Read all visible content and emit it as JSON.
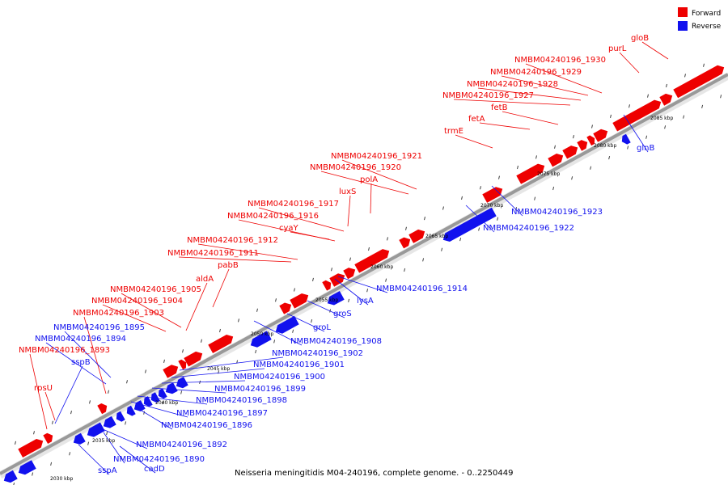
{
  "caption": "Neisseria meningitidis M04-240196, complete genome. - 0..2250449",
  "legend": [
    {
      "label": "Forward",
      "color": "#ee0000"
    },
    {
      "label": "Reverse",
      "color": "#1111ee"
    }
  ],
  "colors": {
    "forward": "#ee0000",
    "reverse": "#1111ee",
    "backbone": "#999999"
  },
  "scale_labels": [
    "2030 kbp",
    "2035 kbp",
    "2040 kbp",
    "2045 kbp",
    "2050 kbp",
    "2055 kbp",
    "2060 kbp",
    "2065 kbp",
    "2070 kbp",
    "2075 kbp",
    "2080 kbp",
    "2085 kbp"
  ],
  "forward_labels": [
    "rpsU",
    "NMBM04240196_1893",
    "NMBM04240196_1903",
    "NMBM04240196_1904",
    "NMBM04240196_1905",
    "aldA",
    "pabB",
    "NMBM04240196_1911",
    "NMBM04240196_1912",
    "cyaY",
    "NMBM04240196_1916",
    "NMBM04240196_1917",
    "luxS",
    "NMBM04240196_1920",
    "polA",
    "NMBM04240196_1921",
    "trmE",
    "fetA",
    "fetB",
    "NMBM04240196_1927",
    "NMBM04240196_1928",
    "NMBM04240196_1929",
    "NMBM04240196_1930",
    "purL",
    "gloB"
  ],
  "reverse_labels": [
    "sspB",
    "NMBM04240196_1894",
    "NMBM04240196_1895",
    "NMBM04240196_1892",
    "NMBM04240196_1890",
    "sspA",
    "cadD",
    "NMBM04240196_1896",
    "NMBM04240196_1897",
    "NMBM04240196_1898",
    "NMBM04240196_1899",
    "NMBM04240196_1900",
    "NMBM04240196_1901",
    "NMBM04240196_1902",
    "NMBM04240196_1908",
    "groL",
    "groS",
    "lysA",
    "NMBM04240196_1914",
    "NMBM04240196_1922",
    "NMBM04240196_1923",
    "glnB"
  ]
}
